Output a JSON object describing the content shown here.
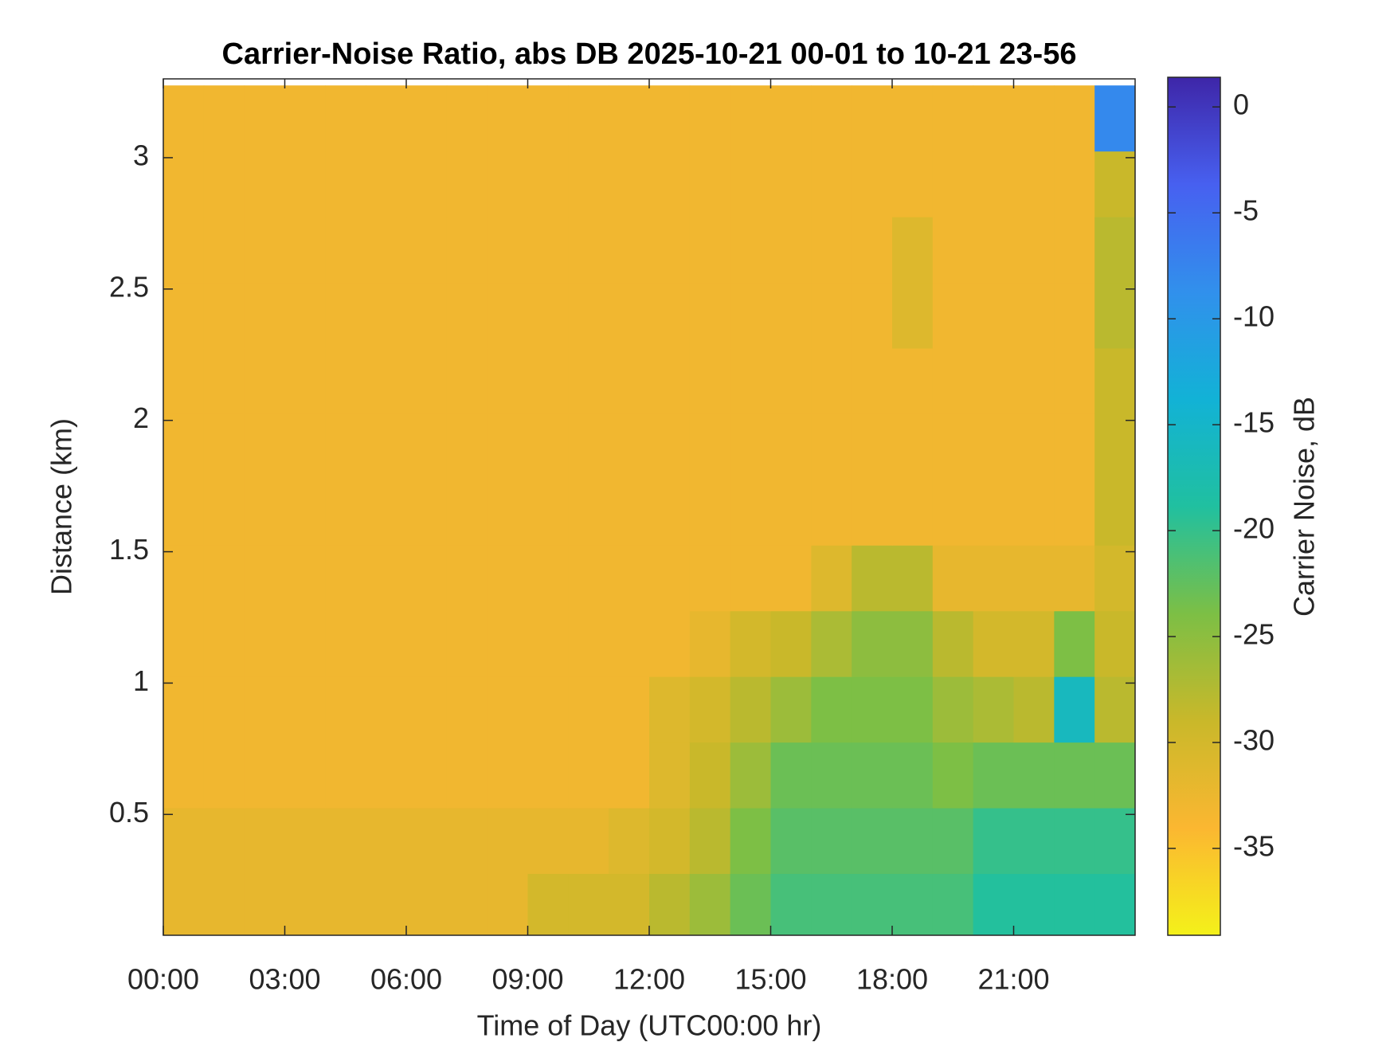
{
  "chart_data": {
    "type": "heatmap",
    "title": "Carrier-Noise Ratio, abs DB 2025-10-21 00-01 to 10-21 23-56",
    "x_label": "Time of Day (UTC00:00 hr)",
    "y_label": "Distance (km)",
    "colorbar_label": "Carrier Noise, dB",
    "x": [
      0.5,
      1.5,
      2.5,
      3.5,
      4.5,
      5.5,
      6.5,
      7.5,
      8.5,
      9.5,
      10.5,
      11.5,
      12.5,
      13.5,
      14.5,
      15.5,
      16.5,
      17.5,
      18.5,
      19.5,
      20.5,
      21.5,
      22.5,
      23.5
    ],
    "y": [
      0.15,
      0.4,
      0.65,
      0.9,
      1.15,
      1.4,
      1.65,
      1.9,
      2.15,
      2.4,
      2.65,
      2.9,
      3.15
    ],
    "z": [
      [
        -32,
        -32,
        -32,
        -32,
        -32,
        -32,
        -32,
        -32,
        -32,
        -30,
        -30,
        -30,
        -28,
        -26,
        -23,
        -21,
        -21,
        -21,
        -21,
        -21,
        -19,
        -19,
        -19,
        -19
      ],
      [
        -32,
        -32,
        -32,
        -32,
        -32,
        -32,
        -32,
        -32,
        -32,
        -32,
        -32,
        -31,
        -30,
        -28,
        -24,
        -22,
        -22,
        -22,
        -22,
        -22,
        -20,
        -20,
        -20,
        -20
      ],
      [
        -33,
        -33,
        -33,
        -33,
        -33,
        -33,
        -33,
        -33,
        -33,
        -33,
        -33,
        -33,
        -31,
        -29,
        -26,
        -23,
        -23,
        -23,
        -23,
        -24,
        -23,
        -23,
        -23,
        -23
      ],
      [
        -33,
        -33,
        -33,
        -33,
        -33,
        -33,
        -33,
        -33,
        -33,
        -33,
        -33,
        -33,
        -31,
        -30,
        -28,
        -26,
        -24,
        -24,
        -24,
        -26,
        -27,
        -28,
        -16,
        -28
      ],
      [
        -33,
        -33,
        -33,
        -33,
        -33,
        -33,
        -33,
        -33,
        -33,
        -33,
        -33,
        -33,
        -33,
        -32,
        -30,
        -29,
        -27,
        -25,
        -25,
        -28,
        -30,
        -30,
        -24,
        -29
      ],
      [
        -33,
        -33,
        -33,
        -33,
        -33,
        -33,
        -33,
        -33,
        -33,
        -33,
        -33,
        -33,
        -33,
        -33,
        -33,
        -33,
        -31,
        -28,
        -28,
        -32,
        -32,
        -32,
        -32,
        -30
      ],
      [
        -33,
        -33,
        -33,
        -33,
        -33,
        -33,
        -33,
        -33,
        -33,
        -33,
        -33,
        -33,
        -33,
        -33,
        -33,
        -33,
        -33,
        -33,
        -33,
        -33,
        -33,
        -33,
        -33,
        -29
      ],
      [
        -33,
        -33,
        -33,
        -33,
        -33,
        -33,
        -33,
        -33,
        -33,
        -33,
        -33,
        -33,
        -33,
        -33,
        -33,
        -33,
        -33,
        -33,
        -33,
        -33,
        -33,
        -33,
        -33,
        -29
      ],
      [
        -33,
        -33,
        -33,
        -33,
        -33,
        -33,
        -33,
        -33,
        -33,
        -33,
        -33,
        -33,
        -33,
        -33,
        -33,
        -33,
        -33,
        -33,
        -33,
        -33,
        -33,
        -33,
        -33,
        -29
      ],
      [
        -33,
        -33,
        -33,
        -33,
        -33,
        -33,
        -33,
        -33,
        -33,
        -33,
        -33,
        -33,
        -33,
        -33,
        -33,
        -33,
        -33,
        -33,
        -31,
        -33,
        -33,
        -33,
        -33,
        -28
      ],
      [
        -33,
        -33,
        -33,
        -33,
        -33,
        -33,
        -33,
        -33,
        -33,
        -33,
        -33,
        -33,
        -33,
        -33,
        -33,
        -33,
        -33,
        -33,
        -31,
        -33,
        -33,
        -33,
        -33,
        -28
      ],
      [
        -33,
        -33,
        -33,
        -33,
        -33,
        -33,
        -33,
        -33,
        -33,
        -33,
        -33,
        -33,
        -33,
        -33,
        -33,
        -33,
        -33,
        -33,
        -33,
        -33,
        -33,
        -33,
        -33,
        -29
      ],
      [
        -33,
        -33,
        -33,
        -33,
        -33,
        -33,
        -33,
        -33,
        -33,
        -33,
        -33,
        -33,
        -33,
        -33,
        -33,
        -33,
        -33,
        -33,
        -33,
        -33,
        -33,
        -33,
        -33,
        -8
      ]
    ],
    "xlim": [
      0,
      24
    ],
    "xticks": [
      {
        "value": 0,
        "label": "00:00"
      },
      {
        "value": 3,
        "label": "03:00"
      },
      {
        "value": 6,
        "label": "06:00"
      },
      {
        "value": 9,
        "label": "09:00"
      },
      {
        "value": 12,
        "label": "12:00"
      },
      {
        "value": 15,
        "label": "15:00"
      },
      {
        "value": 18,
        "label": "18:00"
      },
      {
        "value": 21,
        "label": "21:00"
      }
    ],
    "ylim": [
      0.04,
      3.3
    ],
    "yticks": [
      0.5,
      1,
      1.5,
      2,
      2.5,
      3
    ],
    "clim": [
      -39.1,
      1.4
    ],
    "cticks": [
      -35,
      -30,
      -25,
      -20,
      -15,
      -10,
      -5,
      0
    ],
    "colormap": [
      "#f4f11a",
      "#fbb731",
      "#c9b82a",
      "#7cbf45",
      "#20c0a0",
      "#12b2d6",
      "#3190ec",
      "#4760f0",
      "#3e26a8"
    ]
  }
}
